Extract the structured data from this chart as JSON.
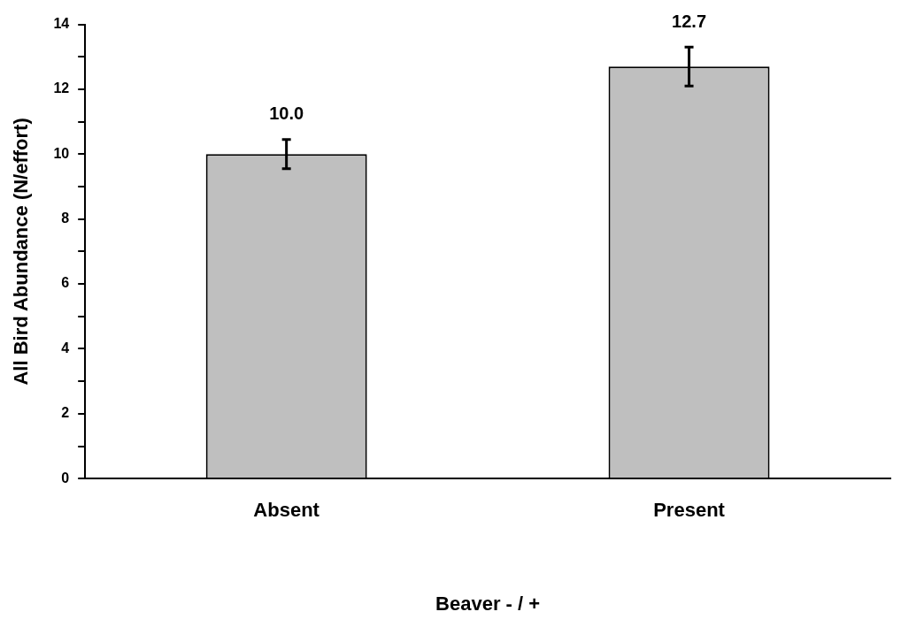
{
  "chart_data": {
    "type": "bar",
    "xlabel": "Beaver - / +",
    "ylabel": "All Bird Abundance (N/effort)",
    "categories": [
      "Absent",
      "Present"
    ],
    "values": [
      10.0,
      12.7
    ],
    "color": "#bfbfbf",
    "errors": [
      0.45,
      0.6
    ],
    "value_labels": [
      "10.0",
      "12.7"
    ],
    "ylim": [
      0,
      14
    ],
    "yticks": [
      0,
      {
        "value": 1,
        "label": null
      },
      2,
      {
        "value": 3,
        "label": null
      },
      4,
      {
        "value": 5,
        "label": null
      },
      6,
      {
        "value": 7,
        "label": null
      },
      8,
      {
        "value": 9,
        "label": null
      },
      10,
      {
        "value": 11,
        "label": null
      },
      12,
      {
        "value": 13,
        "label": null
      },
      14
    ],
    "grid": false,
    "legend": false
  }
}
